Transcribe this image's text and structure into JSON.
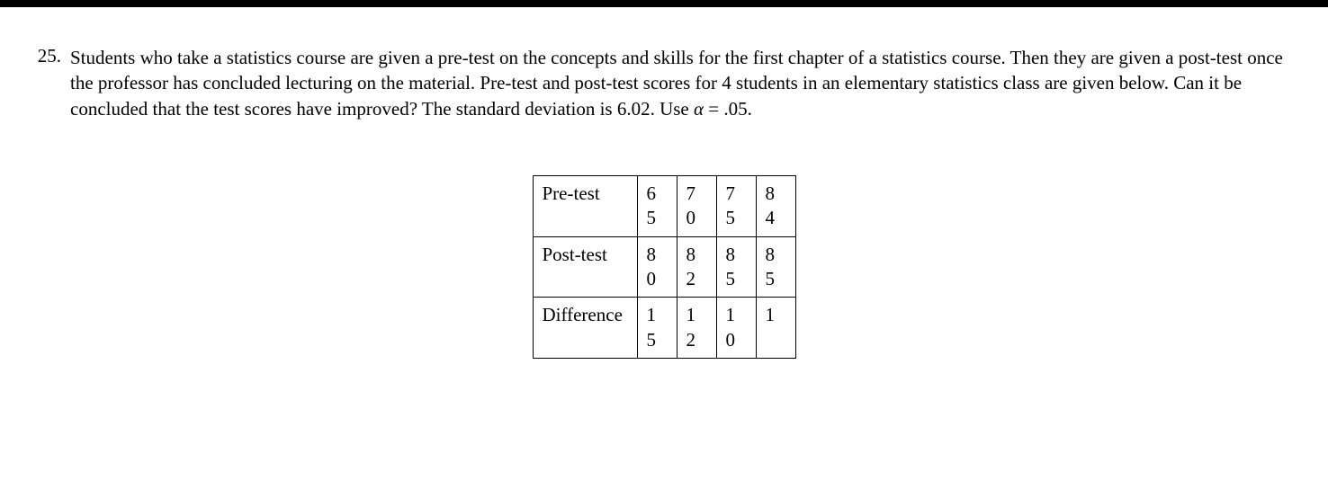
{
  "question": {
    "number": "25.",
    "text_part1": "Students who take a statistics course are given a pre-test on the concepts and skills for the first chapter of a statistics course. Then they are given a post-test once the professor has concluded lecturing on the material. Pre-test and post-test scores for 4 students in an elementary statistics class are given below.  Can it be concluded that the test scores have improved? The standard deviation is 6.02.    Use ",
    "alpha": "α",
    "text_part2": " = .05."
  },
  "table": {
    "rows": [
      {
        "label": "Pre-test",
        "cells": [
          [
            "6",
            "5"
          ],
          [
            "7",
            "0"
          ],
          [
            "7",
            "5"
          ],
          [
            "8",
            "4"
          ]
        ]
      },
      {
        "label": "Post-test",
        "cells": [
          [
            "8",
            "0"
          ],
          [
            "8",
            "2"
          ],
          [
            "8",
            "5"
          ],
          [
            "8",
            "5"
          ]
        ]
      },
      {
        "label": "Difference",
        "cells": [
          [
            "1",
            "5"
          ],
          [
            "1",
            "2"
          ],
          [
            "1",
            "0"
          ],
          [
            "1",
            ""
          ]
        ]
      }
    ]
  }
}
